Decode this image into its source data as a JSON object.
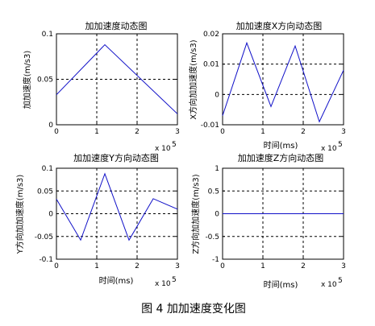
{
  "figure": {
    "caption": "图 4  加加速度变化图"
  },
  "chart_data": [
    {
      "type": "line",
      "title": "加加速度动态图",
      "xlabel": "",
      "ylabel": "加加速度(m/s3)",
      "xlim": [
        0,
        3
      ],
      "ylim": [
        0,
        0.1
      ],
      "xticks": [
        "0",
        "1",
        "2",
        "3"
      ],
      "yticks": [
        "0",
        "0.05",
        "0.1"
      ],
      "x_exponent": "x 10",
      "x_exponent_power": "5",
      "series": [
        {
          "x": [
            0,
            1.2,
            3
          ],
          "y": [
            0.033,
            0.088,
            0.012
          ]
        }
      ]
    },
    {
      "type": "line",
      "title": "加加速度X方向动态图",
      "xlabel": "时间(ms)",
      "ylabel": "X方向加加速度(m/s3)",
      "xlim": [
        0,
        3
      ],
      "ylim": [
        -0.01,
        0.02
      ],
      "xticks": [
        "0",
        "1",
        "2",
        "3"
      ],
      "yticks": [
        "-0.01",
        "0",
        "0.01",
        "0.02"
      ],
      "x_exponent": "x 10",
      "x_exponent_power": "5",
      "series": [
        {
          "x": [
            0,
            0.6,
            1.2,
            1.8,
            2.4,
            3
          ],
          "y": [
            -0.007,
            0.017,
            -0.004,
            0.016,
            -0.009,
            0.008
          ]
        }
      ]
    },
    {
      "type": "line",
      "title": "加加速度Y方向动态图",
      "xlabel": "时间(ms)",
      "ylabel": "Y方向加加速度(m/s3)",
      "xlim": [
        0,
        3
      ],
      "ylim": [
        -0.1,
        0.1
      ],
      "xticks": [
        "0",
        "1",
        "2",
        "3"
      ],
      "yticks": [
        "-0.1",
        "-0.05",
        "0",
        "0.05",
        "0.1"
      ],
      "x_exponent": "x 10",
      "x_exponent_power": "5",
      "series": [
        {
          "x": [
            0,
            0.6,
            1.2,
            1.8,
            2.4,
            3
          ],
          "y": [
            0.032,
            -0.058,
            0.088,
            -0.058,
            0.033,
            0.01
          ]
        }
      ]
    },
    {
      "type": "line",
      "title": "加加速度Z方向动态图",
      "xlabel": "时间(ms)",
      "ylabel": "Z方向加加速度(m/s3)",
      "xlim": [
        0,
        3
      ],
      "ylim": [
        -1,
        1
      ],
      "xticks": [
        "0",
        "1",
        "2",
        "3"
      ],
      "yticks": [
        "-1",
        "-0.5",
        "0",
        "0.5",
        "1"
      ],
      "x_exponent": "x 10",
      "x_exponent_power": "5",
      "series": [
        {
          "x": [
            0,
            3
          ],
          "y": [
            0,
            0
          ]
        }
      ]
    }
  ]
}
